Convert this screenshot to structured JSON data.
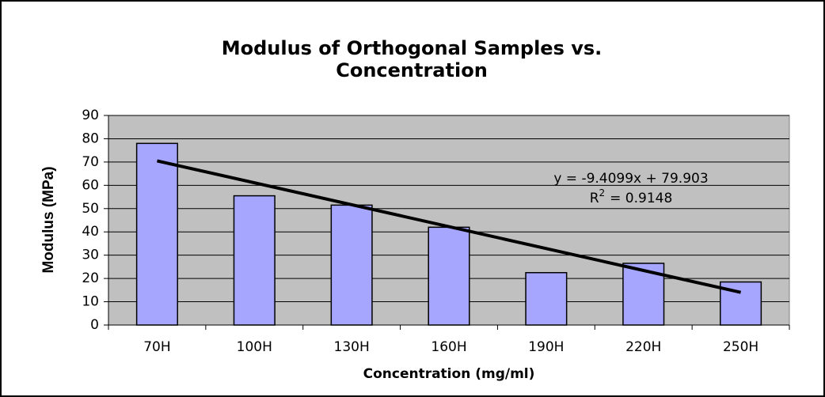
{
  "chart_data": {
    "type": "bar",
    "title": [
      "Modulus of Orthogonal Samples vs.",
      "Concentration"
    ],
    "x_label": "Concentration (mg/ml)",
    "y_label": "Modulus (MPa)",
    "categories": [
      "70H",
      "100H",
      "130H",
      "160H",
      "190H",
      "220H",
      "250H"
    ],
    "values": [
      78,
      55.5,
      51.5,
      42,
      22.5,
      26.5,
      18.5
    ],
    "color": "#a6a6ff",
    "ylim": [
      0,
      90
    ],
    "yticks": [
      0,
      10,
      20,
      30,
      40,
      50,
      60,
      70,
      80,
      90
    ],
    "grid": true,
    "trendline": {
      "slope": -9.4099,
      "intercept": 79.903,
      "color": "#000000"
    },
    "annotations": {
      "equation": "y = -9.4099x + 79.903",
      "r2_symbol": "R",
      "r2_power": "2",
      "r2_value": "= 0.9148"
    }
  }
}
